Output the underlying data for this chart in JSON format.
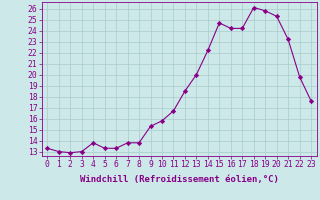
{
  "x": [
    0,
    1,
    2,
    3,
    4,
    5,
    6,
    7,
    8,
    9,
    10,
    11,
    12,
    13,
    14,
    15,
    16,
    17,
    18,
    19,
    20,
    21,
    22,
    23
  ],
  "y": [
    13.3,
    13.0,
    12.9,
    13.0,
    13.8,
    13.3,
    13.3,
    13.8,
    13.8,
    15.3,
    15.8,
    16.7,
    18.5,
    20.0,
    22.2,
    24.7,
    24.2,
    24.2,
    26.1,
    25.8,
    25.3,
    23.2,
    19.8,
    17.6
  ],
  "line_color": "#880088",
  "marker": "D",
  "marker_size": 2.2,
  "bg_color": "#cce8e8",
  "grid_color": "#aacccc",
  "xlabel": "Windchill (Refroidissement éolien,°C)",
  "ylabel_ticks": [
    13,
    14,
    15,
    16,
    17,
    18,
    19,
    20,
    21,
    22,
    23,
    24,
    25,
    26
  ],
  "ylim": [
    12.6,
    26.6
  ],
  "xlim": [
    -0.5,
    23.5
  ],
  "xlabel_fontsize": 6.5,
  "tick_fontsize": 5.8
}
